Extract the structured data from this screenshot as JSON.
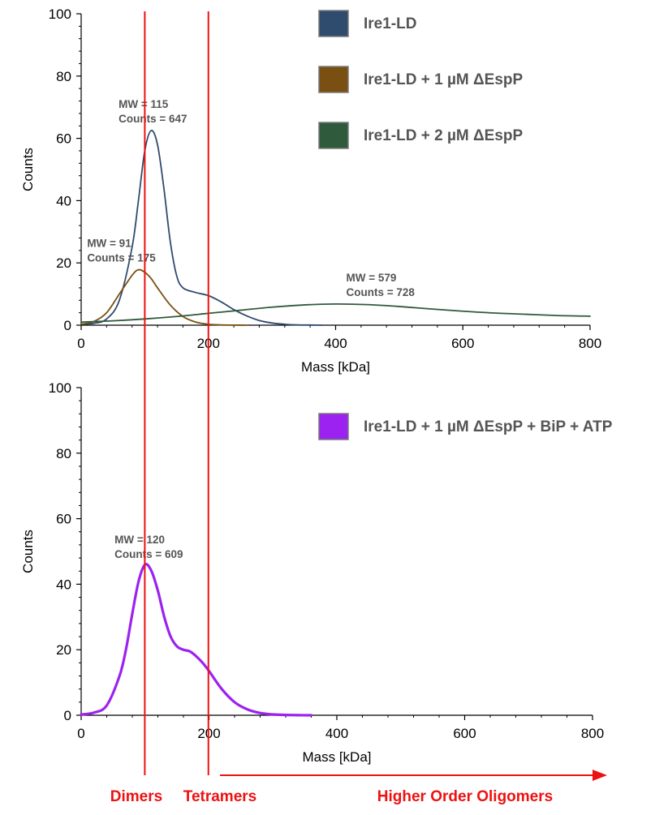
{
  "colors": {
    "ire1_ld": "#2f4b6e",
    "ire1_ld_1uM": "#7a4f12",
    "ire1_ld_2uM": "#2f5a3c",
    "bip_atp": "#9b22f0",
    "markers": "#ee1111"
  },
  "chart_data": [
    {
      "type": "line",
      "xlabel": "Mass [kDa]",
      "ylabel": "Counts",
      "xlim": [
        0,
        800
      ],
      "ylim": [
        0,
        100
      ],
      "xticks": [
        "0",
        "200",
        "400",
        "600",
        "800"
      ],
      "yticks": [
        "0",
        "20",
        "40",
        "60",
        "80",
        "100"
      ],
      "legend_position": "top-right",
      "series": [
        {
          "name": "Ire1-LD",
          "color": "#2f4b6e",
          "x": [
            0,
            20,
            40,
            60,
            80,
            90,
            100,
            110,
            120,
            130,
            140,
            150,
            160,
            180,
            200,
            220,
            240,
            260,
            280,
            300,
            320,
            340,
            360,
            380
          ],
          "y": [
            0.3,
            0.6,
            2,
            8,
            25,
            40,
            56,
            62.5,
            58,
            44,
            27,
            16,
            12,
            10.5,
            9.5,
            7.5,
            5,
            3,
            1.5,
            0.7,
            0.3,
            0.1,
            0.05,
            0
          ]
        },
        {
          "name": "Ire1-LD + 1 µM ΔEspP",
          "color": "#7a4f12",
          "x": [
            0,
            20,
            40,
            60,
            80,
            90,
            100,
            110,
            120,
            140,
            160,
            180,
            200,
            220,
            240,
            260
          ],
          "y": [
            0.3,
            1.2,
            4,
            10,
            16,
            17.8,
            17,
            15,
            12,
            6.5,
            2.8,
            1,
            0.3,
            0.1,
            0.03,
            0
          ]
        },
        {
          "name": "Ire1-LD + 2 µM ΔEspP",
          "color": "#2f5a3c",
          "x": [
            0,
            50,
            100,
            150,
            200,
            250,
            300,
            350,
            400,
            450,
            500,
            550,
            600,
            650,
            700,
            750,
            800
          ],
          "y": [
            1,
            1.4,
            2,
            2.8,
            3.8,
            4.8,
            5.8,
            6.5,
            6.8,
            6.6,
            6,
            5.2,
            4.5,
            3.9,
            3.5,
            3.1,
            2.9
          ]
        }
      ],
      "annotations": [
        {
          "line1": "MW =  115",
          "line2": "Counts = 647",
          "x": 115,
          "y": 62.5
        },
        {
          "line1": "MW =  91",
          "line2": "Counts = 175",
          "x": 91,
          "y": 17.8
        },
        {
          "line1": "MW =  579",
          "line2": "Counts = 728",
          "x": 400,
          "y": 6.8
        }
      ]
    },
    {
      "type": "line",
      "xlabel": "Mass [kDa]",
      "ylabel": "Counts",
      "xlim": [
        0,
        800
      ],
      "ylim": [
        0,
        100
      ],
      "xticks": [
        "0",
        "200",
        "400",
        "600",
        "800"
      ],
      "yticks": [
        "0",
        "20",
        "40",
        "60",
        "80",
        "100"
      ],
      "legend_position": "top-right",
      "series": [
        {
          "name": "Ire1-LD + 1 µM ΔEspP + BiP + ATP",
          "color": "#9b22f0",
          "x": [
            0,
            20,
            40,
            60,
            70,
            80,
            90,
            100,
            110,
            120,
            130,
            140,
            150,
            160,
            170,
            180,
            190,
            200,
            220,
            240,
            260,
            280,
            300,
            320,
            340,
            360
          ],
          "y": [
            0.2,
            0.8,
            3,
            12,
            20,
            31,
            41,
            46,
            44,
            38,
            30,
            24,
            21,
            20,
            19.5,
            18,
            16,
            13.5,
            8,
            4,
            1.8,
            0.7,
            0.25,
            0.1,
            0.03,
            0
          ]
        }
      ],
      "annotations": [
        {
          "line1": "MW =  120",
          "line2": "Counts = 609",
          "x": 103,
          "y": 46
        }
      ]
    }
  ],
  "markers": {
    "dimers_x": 100,
    "tetramers_x": 200,
    "dimers_label": "Dimers",
    "tetramers_label": "Tetramers",
    "higher_label": "Higher Order Oligomers"
  }
}
